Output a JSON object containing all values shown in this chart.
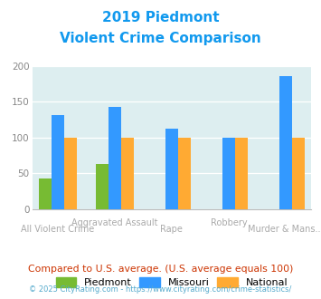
{
  "title_line1": "2019 Piedmont",
  "title_line2": "Violent Crime Comparison",
  "categories": [
    "All Violent Crime",
    "Aggravated Assault",
    "Rape",
    "Robbery",
    "Murder & Mans..."
  ],
  "piedmont": [
    43,
    63,
    0,
    0,
    0
  ],
  "missouri": [
    131,
    143,
    112,
    100,
    185
  ],
  "national": [
    100,
    100,
    100,
    100,
    100
  ],
  "color_piedmont": "#77bb33",
  "color_missouri": "#3399ff",
  "color_national": "#ffaa33",
  "ylim": [
    0,
    200
  ],
  "yticks": [
    0,
    50,
    100,
    150,
    200
  ],
  "background_color": "#ddeef0",
  "title_color": "#1199ee",
  "footer_text": "Compared to U.S. average. (U.S. average equals 100)",
  "footer_color": "#cc3300",
  "credit_text": "© 2025 CityRating.com - https://www.cityrating.com/crime-statistics/",
  "credit_color": "#55aacc",
  "bar_width": 0.22,
  "xtick_color": "#aaaaaa",
  "ytick_color": "#888888"
}
